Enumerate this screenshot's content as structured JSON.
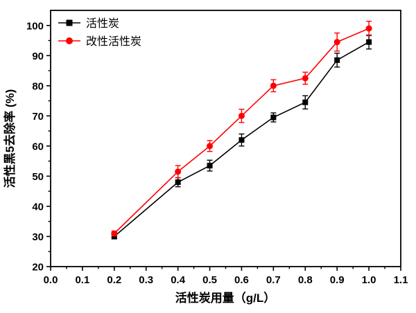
{
  "chart_data": {
    "type": "line",
    "title": "",
    "xlabel": "活性炭用量（g/L）",
    "ylabel": "活性黑5去除率 (%)",
    "xlim": [
      0.0,
      1.1
    ],
    "ylim": [
      20,
      105
    ],
    "x_major_ticks": [
      0.0,
      0.1,
      0.2,
      0.3,
      0.4,
      0.5,
      0.6,
      0.7,
      0.8,
      0.9,
      1.0,
      1.1
    ],
    "x_minor_ticks": [
      0.05,
      0.15,
      0.25,
      0.35,
      0.45,
      0.55,
      0.65,
      0.75,
      0.85,
      0.95,
      1.05
    ],
    "y_major_ticks": [
      20,
      30,
      40,
      50,
      60,
      70,
      80,
      90,
      100
    ],
    "y_minor_ticks": [
      25,
      35,
      45,
      55,
      65,
      75,
      85,
      95
    ],
    "x": [
      0.2,
      0.4,
      0.5,
      0.6,
      0.7,
      0.8,
      0.9,
      1.0
    ],
    "series": [
      {
        "name": "活性炭",
        "color": "#000000",
        "marker": "square",
        "values": [
          30,
          48,
          53.5,
          62,
          69.5,
          74.5,
          88.5,
          94.5
        ],
        "errors": [
          0.8,
          1.5,
          1.8,
          2.0,
          1.5,
          2.2,
          2.3,
          2.3
        ]
      },
      {
        "name": "改性活性炭",
        "color": "#ff0000",
        "marker": "circle",
        "values": [
          31,
          51.5,
          60,
          70,
          80,
          82.5,
          94.5,
          99
        ],
        "errors": [
          0.8,
          2.0,
          1.8,
          2.2,
          2.0,
          2.0,
          3.0,
          2.4
        ]
      }
    ],
    "legend_position": "top-left",
    "grid": false
  }
}
